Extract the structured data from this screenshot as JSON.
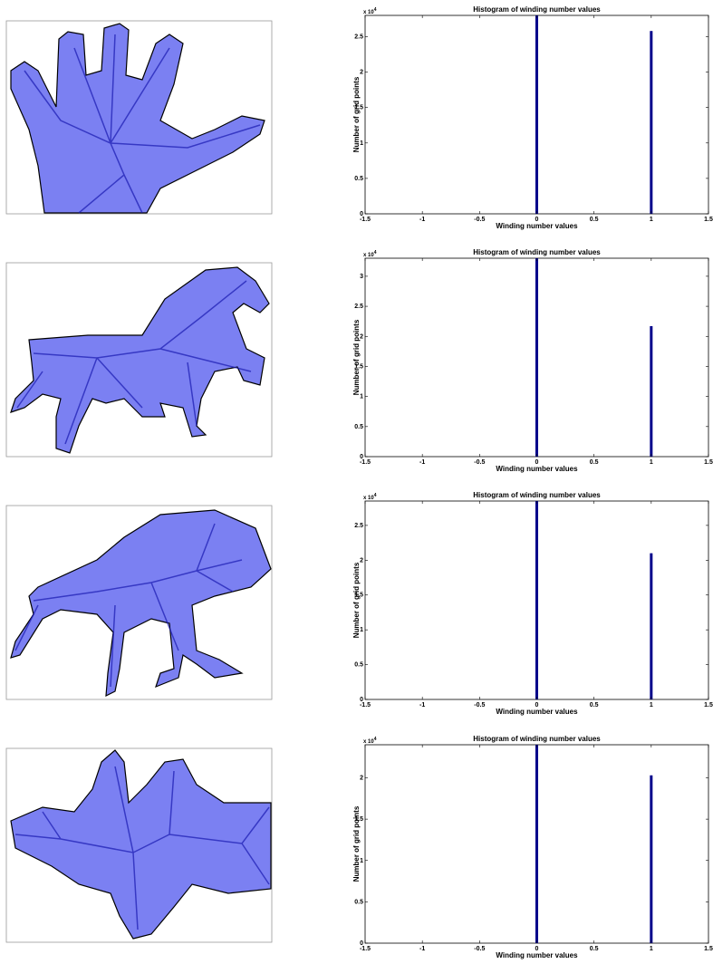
{
  "chart_data": [
    {
      "type": "bar",
      "title": "Histogram of winding number values",
      "xlabel": "Winding number values",
      "ylabel": "Number of grid points",
      "y_multiplier": "x 10",
      "y_exponent": "4",
      "x": [
        0,
        1
      ],
      "values": [
        2.8,
        2.58
      ],
      "color": "#00008b",
      "xlim": [
        -1.5,
        1.5
      ],
      "xticks": [
        -1.5,
        -1,
        -0.5,
        0,
        0.5,
        1,
        1.5
      ],
      "ylim": [
        0,
        2.8
      ],
      "yticks": [
        0,
        0.5,
        1,
        1.5,
        2,
        2.5
      ]
    },
    {
      "type": "bar",
      "title": "Histogram of winding number values",
      "xlabel": "Winding number values",
      "ylabel": "Number of grid points",
      "y_multiplier": "x 10",
      "y_exponent": "4",
      "x": [
        0,
        1
      ],
      "values": [
        3.3,
        2.17
      ],
      "color": "#00008b",
      "xlim": [
        -1.5,
        1.5
      ],
      "xticks": [
        -1.5,
        -1,
        -0.5,
        0,
        0.5,
        1,
        1.5
      ],
      "ylim": [
        0,
        3.3
      ],
      "yticks": [
        0,
        0.5,
        1,
        1.5,
        2,
        2.5,
        3
      ]
    },
    {
      "type": "bar",
      "title": "Histogram of winding number values",
      "xlabel": "Winding number values",
      "ylabel": "Number of grid points",
      "y_multiplier": "x 10",
      "y_exponent": "4",
      "x": [
        0,
        1
      ],
      "values": [
        2.85,
        2.1
      ],
      "color": "#00008b",
      "xlim": [
        -1.5,
        1.5
      ],
      "xticks": [
        -1.5,
        -1,
        -0.5,
        0,
        0.5,
        1,
        1.5
      ],
      "ylim": [
        0,
        2.85
      ],
      "yticks": [
        0,
        0.5,
        1,
        1.5,
        2,
        2.5
      ]
    },
    {
      "type": "bar",
      "title": "Histogram of winding number values",
      "xlabel": "Winding number values",
      "ylabel": "Number of grid points",
      "y_multiplier": "x 10",
      "y_exponent": "4",
      "x": [
        0,
        1
      ],
      "values": [
        2.4,
        2.03
      ],
      "color": "#00008b",
      "xlim": [
        -1.5,
        1.5
      ],
      "xticks": [
        -1.5,
        -1,
        -0.5,
        0,
        0.5,
        1,
        1.5
      ],
      "ylim": [
        0,
        2.4
      ],
      "yticks": [
        0,
        0.5,
        1,
        1.5,
        2
      ]
    }
  ]
}
